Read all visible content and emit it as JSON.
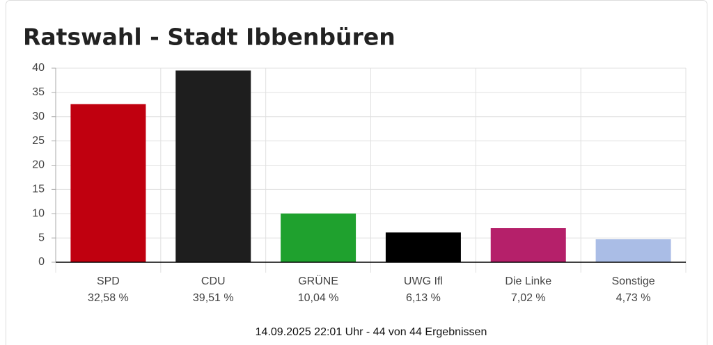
{
  "chart_data": {
    "type": "bar",
    "title": "Ratswahl - Stadt Ibbenbüren",
    "categories": [
      "SPD",
      "CDU",
      "GRÜNE",
      "UWG Ifl",
      "Die Linke",
      "Sonstige"
    ],
    "values": [
      32.58,
      39.51,
      10.04,
      6.13,
      7.02,
      4.73
    ],
    "value_labels": [
      "32,58 %",
      "39,51 %",
      "10,04 %",
      "6,13 %",
      "7,02 %",
      "4,73 %"
    ],
    "colors": [
      "#c0000f",
      "#1e1e1e",
      "#1fa12e",
      "#000000",
      "#b5206a",
      "#aabde6"
    ],
    "ylim": [
      0,
      40
    ],
    "yticks": [
      0,
      5,
      10,
      15,
      20,
      25,
      30,
      35,
      40
    ],
    "grid": true,
    "footer": "14.09.2025 22:01 Uhr - 44 von 44 Ergebnissen"
  }
}
